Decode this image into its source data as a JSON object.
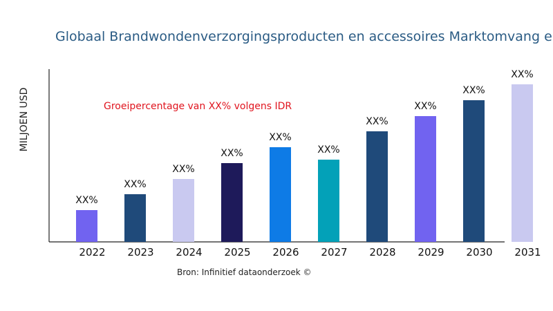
{
  "chart_data": {
    "type": "bar",
    "title": "Globaal Brandwondenverzorgingsproducten en accessoires Marktomvang en",
    "ylabel": "MILJOEN USD",
    "xlabel": "",
    "annotation": "Groeipercentage van XX% volgens IDR",
    "source": "Bron: Infinitief dataonderzoek ©",
    "categories": [
      "2022",
      "2023",
      "2024",
      "2025",
      "2026",
      "2027",
      "2028",
      "2029",
      "2030",
      "2031"
    ],
    "values": [
      46,
      69,
      91,
      114,
      137,
      119,
      160,
      182,
      205,
      228
    ],
    "data_labels": [
      "XX%",
      "XX%",
      "XX%",
      "XX%",
      "XX%",
      "XX%",
      "XX%",
      "XX%",
      "XX%",
      "XX%"
    ],
    "colors": [
      "#7163f0",
      "#1f4a7a",
      "#c9c9f0",
      "#1e1a5a",
      "#0e7be6",
      "#03a1b8",
      "#1f4a7a",
      "#7163f0",
      "#1f4a7a",
      "#c9c9f0"
    ],
    "ylim": [
      0,
      250
    ],
    "grid": false,
    "legend": "none"
  }
}
